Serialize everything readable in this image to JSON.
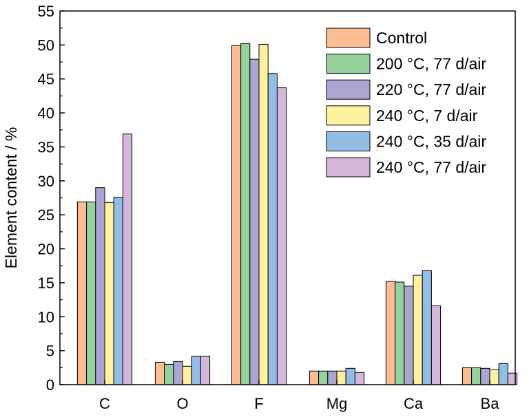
{
  "chart_data": {
    "type": "bar",
    "title": "",
    "xlabel": "",
    "ylabel": "Element content / %",
    "ylim": [
      0,
      55
    ],
    "yticks": [
      0,
      5,
      10,
      15,
      20,
      25,
      30,
      35,
      40,
      45,
      50,
      55
    ],
    "categories": [
      "C",
      "O",
      "F",
      "Mg",
      "Ca",
      "Ba"
    ],
    "legend_position": "top-right",
    "grid": false,
    "series": [
      {
        "name": "Control",
        "color": "#F9BE93",
        "values": [
          26.9,
          3.3,
          49.9,
          2.0,
          15.2,
          2.5
        ]
      },
      {
        "name": "200 °C, 77 d/air",
        "color": "#97D19D",
        "values": [
          26.9,
          3.0,
          50.2,
          2.0,
          15.1,
          2.5
        ]
      },
      {
        "name": "220 °C, 77 d/air",
        "color": "#ABA5D2",
        "values": [
          29.0,
          3.4,
          47.9,
          2.0,
          14.5,
          2.4
        ]
      },
      {
        "name": "240 °C, 7 d/air",
        "color": "#FDF09E",
        "values": [
          26.8,
          2.7,
          50.1,
          2.0,
          16.1,
          2.2
        ]
      },
      {
        "name": "240 °C, 35 d/air",
        "color": "#93BDE5",
        "values": [
          27.6,
          4.2,
          45.8,
          2.4,
          16.8,
          3.1
        ]
      },
      {
        "name": "240 °C, 77 d/air",
        "color": "#D5B7DC",
        "values": [
          36.9,
          4.2,
          43.7,
          1.8,
          11.6,
          1.7
        ]
      }
    ]
  }
}
